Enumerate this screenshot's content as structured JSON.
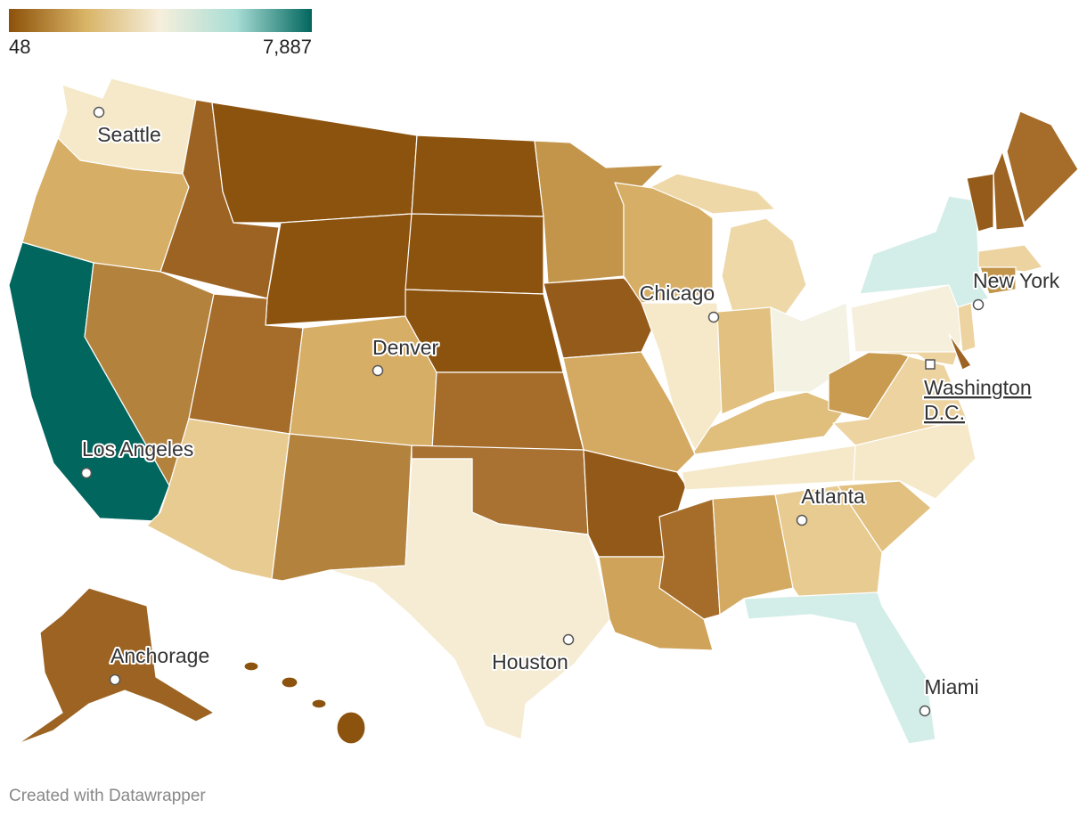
{
  "legend": {
    "min": 48,
    "max": {
      "value": 7887,
      "label": "7,887"
    }
  },
  "cities": [
    {
      "label": "Seattle"
    },
    {
      "label": "Los Angeles"
    },
    {
      "label": "Denver"
    },
    {
      "label": "Chicago"
    },
    {
      "label": "New York"
    },
    {
      "label": [
        "Washington",
        "D.C."
      ]
    },
    {
      "label": "Atlanta"
    },
    {
      "label": "Houston"
    },
    {
      "label": "Miami"
    },
    {
      "label": "Anchorage"
    }
  ],
  "footer": "Created with Datawrapper"
}
